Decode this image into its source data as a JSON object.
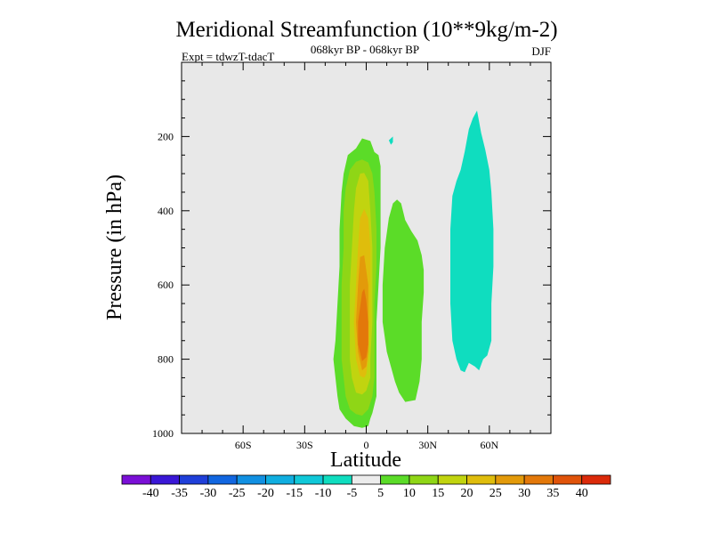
{
  "chart_data": {
    "type": "heatmap",
    "title": "Meridional Streamfunction (10**9kg/m-2)",
    "subtitle_center": "068kyr BP - 068kyr BP",
    "subtitle_left": "Expt = tdwzT-tdacT",
    "subtitle_right": "DJF",
    "xlabel": "Latitude",
    "ylabel": "Pressure (in hPa)",
    "xlim": [
      -90,
      90
    ],
    "ylim": [
      1000,
      0
    ],
    "xticks": [
      {
        "value": -60,
        "label": "60S"
      },
      {
        "value": -30,
        "label": "30S"
      },
      {
        "value": 0,
        "label": "0"
      },
      {
        "value": 30,
        "label": "30N"
      },
      {
        "value": 60,
        "label": "60N"
      }
    ],
    "yticks": [
      {
        "value": 200,
        "label": "200"
      },
      {
        "value": 400,
        "label": "400"
      },
      {
        "value": 600,
        "label": "600"
      },
      {
        "value": 800,
        "label": "800"
      },
      {
        "value": 1000,
        "label": "1000"
      }
    ],
    "colorbar": {
      "levels": [
        -40,
        -35,
        -30,
        -25,
        -20,
        -15,
        -10,
        -5,
        5,
        10,
        15,
        20,
        25,
        30,
        35,
        40
      ],
      "labels": [
        "-40",
        "-35",
        "-30",
        "-25",
        "-20",
        "-15",
        "-10",
        "-5",
        "5",
        "10",
        "15",
        "20",
        "25",
        "30",
        "35",
        "40"
      ],
      "colors": [
        "#7a0fd6",
        "#3a17d6",
        "#1f3fd9",
        "#1166e0",
        "#1190e2",
        "#10aee0",
        "#10c8d8",
        "#0fddbf",
        "#ececec",
        "#5bdc28",
        "#8fd616",
        "#c1d40f",
        "#dfbd0c",
        "#e39a0a",
        "#e3780a",
        "#e0530a",
        "#db2a0a"
      ]
    },
    "background_color": "#e8e8e8",
    "contour_regions": [
      {
        "name": "positive-cell-5",
        "level": 5,
        "color": "#5bdc28",
        "outline": [
          [
            -10,
            960
          ],
          [
            -13,
            935
          ],
          [
            -14,
            900
          ],
          [
            -15,
            850
          ],
          [
            -16,
            800
          ],
          [
            -15,
            750
          ],
          [
            -14,
            650
          ],
          [
            -13,
            550
          ],
          [
            -13,
            450
          ],
          [
            -12,
            350
          ],
          [
            -11,
            300
          ],
          [
            -9,
            250
          ],
          [
            -5,
            232
          ],
          [
            -2,
            205
          ],
          [
            2,
            212
          ],
          [
            4,
            242
          ],
          [
            6,
            250
          ],
          [
            7,
            280
          ],
          [
            7,
            400
          ],
          [
            7,
            500
          ],
          [
            6,
            600
          ],
          [
            5,
            700
          ],
          [
            5,
            800
          ],
          [
            5,
            900
          ],
          [
            3,
            945
          ],
          [
            2,
            960
          ],
          [
            1,
            980
          ],
          [
            -2,
            985
          ],
          [
            -6,
            980
          ]
        ]
      },
      {
        "name": "positive-cell-5-north",
        "level": 5,
        "color": "#5bdc28",
        "outline": [
          [
            9,
            500
          ],
          [
            11,
            420
          ],
          [
            13,
            380
          ],
          [
            15,
            370
          ],
          [
            17,
            380
          ],
          [
            19,
            425
          ],
          [
            22,
            455
          ],
          [
            25,
            480
          ],
          [
            27,
            520
          ],
          [
            28,
            560
          ],
          [
            28,
            620
          ],
          [
            27,
            700
          ],
          [
            27,
            800
          ],
          [
            26,
            860
          ],
          [
            24,
            910
          ],
          [
            19,
            915
          ],
          [
            16,
            890
          ],
          [
            14,
            860
          ],
          [
            12,
            820
          ],
          [
            10,
            780
          ],
          [
            9,
            740
          ],
          [
            8,
            700
          ],
          [
            8,
            600
          ]
        ]
      },
      {
        "name": "positive-cell-10",
        "level": 10,
        "color": "#8fd616",
        "outline": [
          [
            -8,
            935
          ],
          [
            -10,
            900
          ],
          [
            -11,
            850
          ],
          [
            -12,
            800
          ],
          [
            -12,
            700
          ],
          [
            -12,
            600
          ],
          [
            -11,
            500
          ],
          [
            -11,
            400
          ],
          [
            -10,
            340
          ],
          [
            -8,
            290
          ],
          [
            -5,
            268
          ],
          [
            -2,
            262
          ],
          [
            1,
            270
          ],
          [
            3,
            300
          ],
          [
            4,
            350
          ],
          [
            5,
            450
          ],
          [
            5,
            550
          ],
          [
            4,
            650
          ],
          [
            4,
            750
          ],
          [
            4,
            850
          ],
          [
            3,
            900
          ],
          [
            1,
            935
          ],
          [
            -2,
            952
          ],
          [
            -5,
            948
          ]
        ]
      },
      {
        "name": "positive-cell-15",
        "level": 15,
        "color": "#c1d40f",
        "outline": [
          [
            -5,
            890
          ],
          [
            -7,
            850
          ],
          [
            -8,
            800
          ],
          [
            -8,
            700
          ],
          [
            -8,
            600
          ],
          [
            -7,
            500
          ],
          [
            -6,
            400
          ],
          [
            -5,
            340
          ],
          [
            -3,
            300
          ],
          [
            -1,
            298
          ],
          [
            1,
            320
          ],
          [
            2,
            400
          ],
          [
            3,
            500
          ],
          [
            3,
            600
          ],
          [
            3,
            700
          ],
          [
            2,
            800
          ],
          [
            2,
            850
          ],
          [
            0,
            885
          ],
          [
            -2,
            895
          ]
        ]
      },
      {
        "name": "positive-cell-20",
        "level": 20,
        "color": "#dfbd0c",
        "outline": [
          [
            -3,
            845
          ],
          [
            -5,
            800
          ],
          [
            -6,
            700
          ],
          [
            -5,
            600
          ],
          [
            -4,
            500
          ],
          [
            -3,
            420
          ],
          [
            -1,
            395
          ],
          [
            1,
            420
          ],
          [
            2,
            500
          ],
          [
            2,
            600
          ],
          [
            2,
            700
          ],
          [
            1,
            800
          ],
          [
            0,
            840
          ],
          [
            -1,
            850
          ]
        ]
      },
      {
        "name": "positive-cell-25",
        "level": 25,
        "color": "#e39a0a",
        "outline": [
          [
            -2,
            830
          ],
          [
            -4,
            780
          ],
          [
            -5,
            700
          ],
          [
            -4,
            600
          ],
          [
            -3,
            525
          ],
          [
            -1,
            520
          ],
          [
            0,
            560
          ],
          [
            1,
            600
          ],
          [
            1,
            700
          ],
          [
            1,
            780
          ],
          [
            0,
            820
          ]
        ]
      },
      {
        "name": "positive-cell-30",
        "level": 30,
        "color": "#e3780a",
        "outline": [
          [
            -2,
            805
          ],
          [
            -4,
            760
          ],
          [
            -4,
            700
          ],
          [
            -3,
            660
          ],
          [
            -2,
            620
          ],
          [
            -1,
            610
          ],
          [
            0,
            640
          ],
          [
            1,
            700
          ],
          [
            1,
            760
          ],
          [
            0,
            795
          ]
        ]
      },
      {
        "name": "negative-cell-5",
        "level": -5,
        "color": "#0fddbf",
        "outline": [
          [
            46,
            830
          ],
          [
            44,
            800
          ],
          [
            42,
            750
          ],
          [
            41,
            650
          ],
          [
            41,
            550
          ],
          [
            41,
            450
          ],
          [
            42,
            360
          ],
          [
            44,
            320
          ],
          [
            46,
            290
          ],
          [
            48,
            240
          ],
          [
            50,
            180
          ],
          [
            52,
            150
          ],
          [
            54,
            130
          ],
          [
            56,
            190
          ],
          [
            58,
            235
          ],
          [
            60,
            290
          ],
          [
            61,
            350
          ],
          [
            62,
            450
          ],
          [
            62,
            550
          ],
          [
            61,
            650
          ],
          [
            61,
            750
          ],
          [
            59,
            790
          ],
          [
            57,
            800
          ],
          [
            55,
            830
          ],
          [
            53,
            820
          ],
          [
            50,
            810
          ],
          [
            48,
            835
          ]
        ]
      },
      {
        "name": "negative-speck",
        "level": -5,
        "color": "#0fddbf",
        "outline": [
          [
            11,
            210
          ],
          [
            12,
            205
          ],
          [
            13,
            200
          ],
          [
            13,
            215
          ],
          [
            12,
            222
          ]
        ]
      }
    ]
  }
}
